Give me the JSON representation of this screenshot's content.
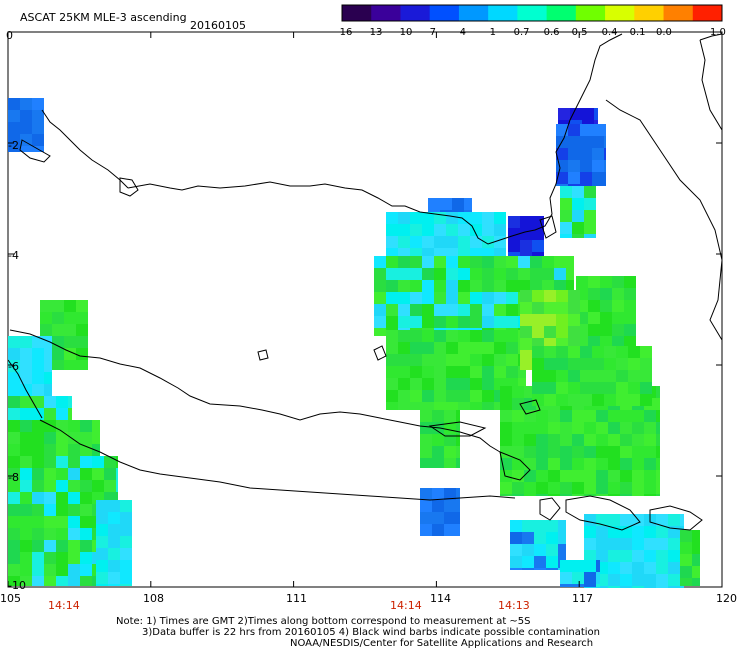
{
  "header": {
    "title": "ASCAT 25KM MLE-3 ascending",
    "date": "20160105"
  },
  "colorbar": {
    "labels": [
      "-16",
      "-13",
      "-10",
      "-7",
      "-4",
      "-1",
      "-0.7",
      "-0.6",
      "-0.5",
      "-0.4",
      "-0.1",
      "0.0",
      "1.0"
    ],
    "colors": [
      "#2a0050",
      "#3a009a",
      "#1a1ad8",
      "#0050ff",
      "#0098ff",
      "#00d8ff",
      "#00ffd0",
      "#00ff70",
      "#70ff00",
      "#d8ff00",
      "#ffd000",
      "#ff8000",
      "#ff2000"
    ]
  },
  "map": {
    "lon_min": 105,
    "lon_max": 120,
    "lat_min": -10,
    "lat_max": 0,
    "lon_ticks": [
      "105",
      "108",
      "111",
      "114",
      "117",
      "120"
    ],
    "lat_ticks": [
      "0",
      "-2",
      "-4",
      "-6",
      "-8",
      "-10"
    ],
    "time_labels": [
      {
        "lon": 106,
        "text": "14:14"
      },
      {
        "lon": 113.3,
        "text": "14:14"
      },
      {
        "lon": 115.5,
        "text": "14:13"
      }
    ]
  },
  "footer": {
    "line1": "Note: 1) Times are GMT 2)Times along bottom correspond to measurement at ~5S",
    "line2": "3)Data buffer is 22 hrs from 20160105 4) Black wind barbs indicate possible contamination",
    "line3": "NOAA/NESDIS/Center for Satellite Applications and Research"
  }
}
